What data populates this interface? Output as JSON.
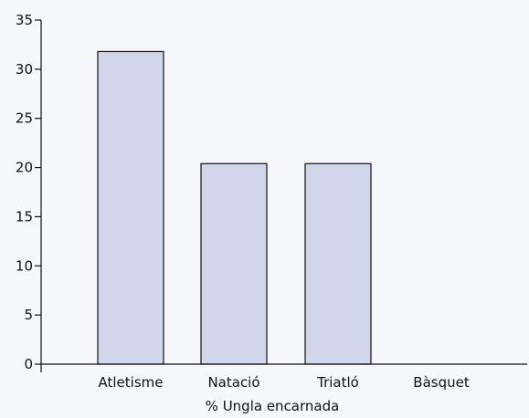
{
  "chart_data": {
    "type": "bar",
    "title": "",
    "xlabel": "% Ungla encarnada",
    "ylabel": "",
    "categories": [
      "Atletisme",
      "Natació",
      "Triatló",
      "Bàsquet"
    ],
    "values": [
      31.8,
      20.4,
      20.4,
      0
    ],
    "ylim": [
      0,
      35
    ],
    "yticks": [
      0,
      5,
      10,
      15,
      20,
      25,
      30,
      35
    ],
    "grid": false,
    "colors": {
      "bar_fill": "#d2d6ea",
      "bar_stroke": "#111111",
      "axis": "#111111"
    }
  }
}
